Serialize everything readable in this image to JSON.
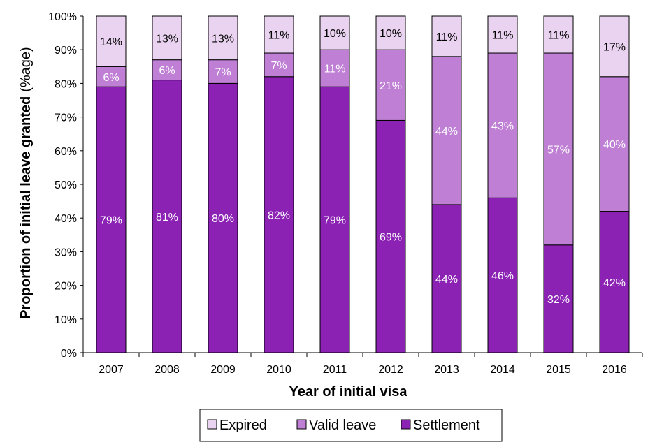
{
  "chart_data": {
    "type": "bar",
    "stacked": true,
    "percent_stacked": true,
    "categories": [
      "2007",
      "2008",
      "2009",
      "2010",
      "2011",
      "2012",
      "2013",
      "2014",
      "2015",
      "2016"
    ],
    "series": [
      {
        "name": "Settlement",
        "color": "#8b22b4",
        "label_color": "#ffffff",
        "values": [
          79,
          81,
          80,
          82,
          79,
          69,
          44,
          46,
          32,
          42
        ]
      },
      {
        "name": "Valid leave",
        "color": "#bf7fd4",
        "label_color": "#ffffff",
        "values": [
          6,
          6,
          7,
          7,
          11,
          21,
          44,
          43,
          57,
          40
        ]
      },
      {
        "name": "Expired",
        "color": "#ead3f0",
        "label_color": "#000000",
        "values": [
          14,
          13,
          13,
          11,
          10,
          10,
          11,
          11,
          11,
          17
        ]
      }
    ],
    "legend_order": [
      "Expired",
      "Valid leave",
      "Settlement"
    ],
    "legend_position": "bottom",
    "xlabel": "Year of initial visa",
    "ylabel": "Proportion of initial leave granted",
    "ylabel_suffix": "(%age)",
    "ylim": [
      0,
      100
    ],
    "yticks": [
      "0%",
      "10%",
      "20%",
      "30%",
      "40%",
      "50%",
      "60%",
      "70%",
      "80%",
      "90%",
      "100%"
    ],
    "grid": false
  }
}
